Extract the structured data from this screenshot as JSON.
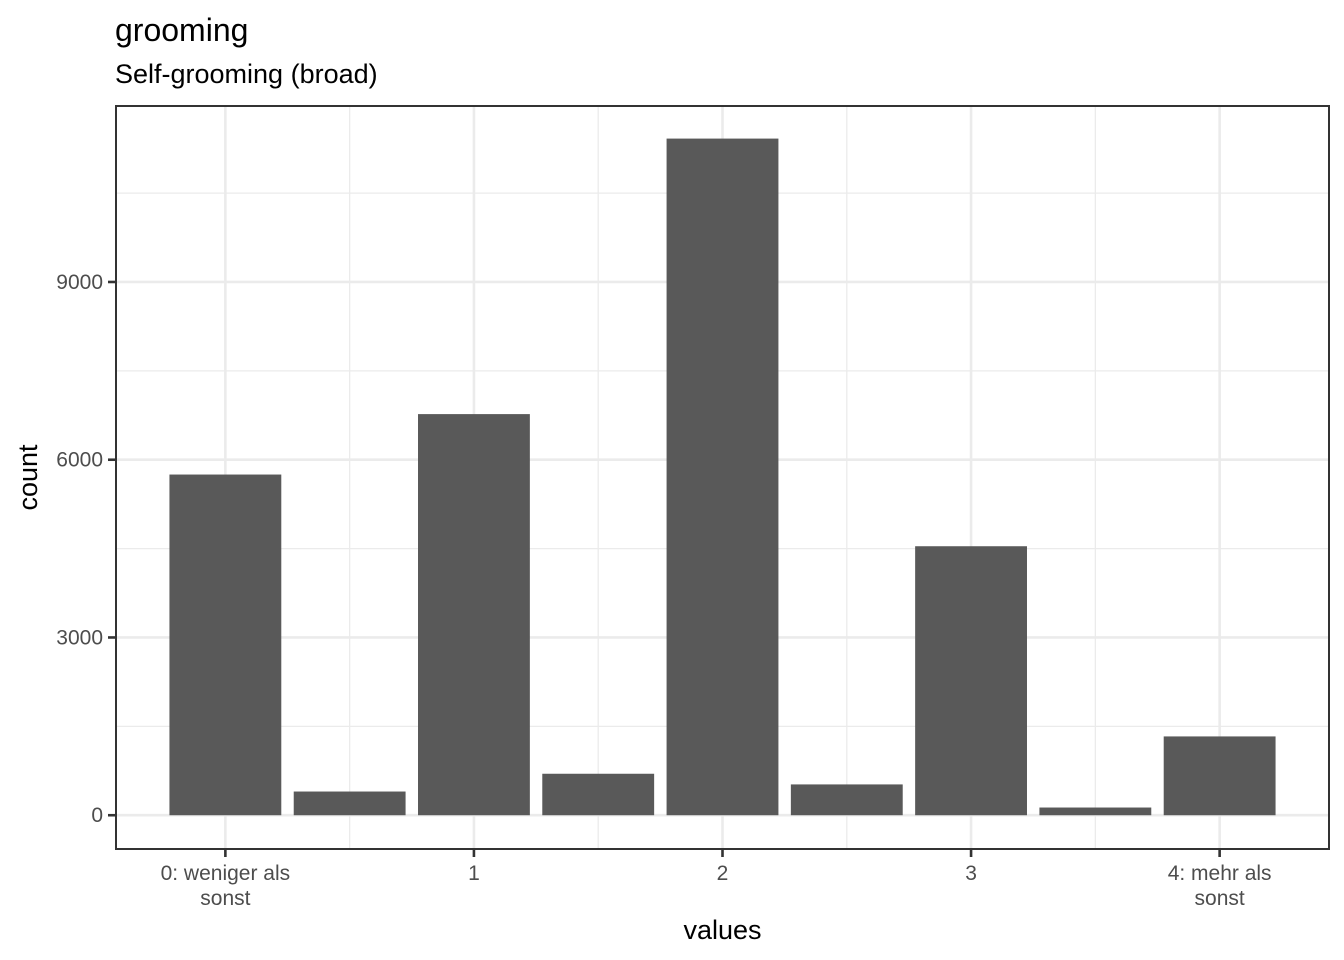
{
  "chart_data": {
    "type": "bar",
    "title": "grooming",
    "subtitle": "Self-grooming (broad)",
    "xlabel": "values",
    "ylabel": "count",
    "x": [
      0,
      0.5,
      1,
      1.5,
      2,
      2.5,
      3,
      3.5,
      4
    ],
    "values": [
      5750,
      400,
      6770,
      700,
      11420,
      520,
      4540,
      130,
      1330
    ],
    "xlim": [
      -0.44,
      4.44
    ],
    "ylim": [
      -570,
      11970
    ],
    "x_ticks": [
      {
        "value": 0,
        "lines": [
          "0: weniger als",
          "sonst"
        ]
      },
      {
        "value": 1,
        "lines": [
          "1"
        ]
      },
      {
        "value": 2,
        "lines": [
          "2"
        ]
      },
      {
        "value": 3,
        "lines": [
          "3"
        ]
      },
      {
        "value": 4,
        "lines": [
          "4: mehr als",
          "sonst"
        ]
      }
    ],
    "y_ticks": [
      0,
      3000,
      6000,
      9000
    ],
    "grid": true,
    "legend": "none"
  }
}
